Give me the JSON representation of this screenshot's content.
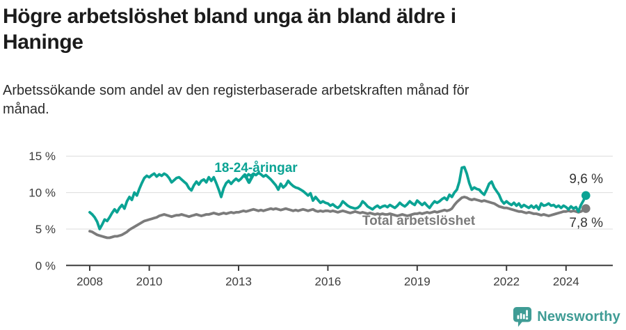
{
  "header": {
    "title": "Högre arbetslöshet bland unga än bland äldre i Haninge",
    "subtitle": "Arbetssökande som andel av den registerbaserade arbetskraften månad för månad."
  },
  "footer": {
    "brand": "Newsworthy"
  },
  "colors": {
    "young_line": "#0ba394",
    "total_line": "#7b7b7b",
    "brand_teal": "#3f9c95",
    "grid": "#dcdcdc",
    "axis": "#3c3c3c",
    "value_label": "#333333",
    "title_text": "#1b1b1b"
  },
  "chart_data": {
    "type": "line",
    "title": "Högre arbetslöshet bland unga än bland äldre i Haninge",
    "subtitle": "Arbetssökande som andel av den registerbaserade arbetskraften månad för månad.",
    "x_unit": "month",
    "x_start": "2008-01",
    "x_end": "2024-09",
    "ylim": [
      0,
      15
    ],
    "grid": true,
    "legend_position": "inline-labels",
    "y_tick_labels": [
      "15 %",
      "10 %",
      "5 %",
      "0 %"
    ],
    "x_tick_labels": [
      "2008",
      "2010",
      "2013",
      "2016",
      "2019",
      "2022",
      "2024"
    ],
    "x_tick_years": [
      2008,
      2010,
      2013,
      2016,
      2019,
      2022,
      2024
    ],
    "series": [
      {
        "name": "18-24-åringar",
        "color": "#0ba394",
        "end_label": "9,6 %",
        "last_value": 9.6,
        "values": [
          7.3,
          7.0,
          6.6,
          6.0,
          5.0,
          5.6,
          6.3,
          6.1,
          6.6,
          7.2,
          7.7,
          7.3,
          7.9,
          8.3,
          7.8,
          8.8,
          9.4,
          9.0,
          10.0,
          9.6,
          10.5,
          11.3,
          12.0,
          12.3,
          12.1,
          12.4,
          12.6,
          12.2,
          12.5,
          12.3,
          12.6,
          12.4,
          12.0,
          11.4,
          11.7,
          12.0,
          12.1,
          11.8,
          11.5,
          11.2,
          10.6,
          10.3,
          11.0,
          11.5,
          11.1,
          11.6,
          11.8,
          11.4,
          12.1,
          11.6,
          12.1,
          11.3,
          10.4,
          9.4,
          10.6,
          11.3,
          11.6,
          11.2,
          11.6,
          11.9,
          11.6,
          11.9,
          12.3,
          12.1,
          12.5,
          12.3,
          12.6,
          12.4,
          12.7,
          12.5,
          12.2,
          12.4,
          12.1,
          11.8,
          11.4,
          11.0,
          10.4,
          11.2,
          10.7,
          11.0,
          11.6,
          11.2,
          10.9,
          10.7,
          10.6,
          10.4,
          10.2,
          9.9,
          9.6,
          9.9,
          8.9,
          9.4,
          9.0,
          8.6,
          8.8,
          8.6,
          8.5,
          8.2,
          8.4,
          8.1,
          7.9,
          8.2,
          8.8,
          8.5,
          8.2,
          8.0,
          7.9,
          7.8,
          7.9,
          8.2,
          8.8,
          8.5,
          8.1,
          7.9,
          7.7,
          8.0,
          8.2,
          7.9,
          8.1,
          8.2,
          8.0,
          8.3,
          8.1,
          7.9,
          8.2,
          8.6,
          8.3,
          8.1,
          8.4,
          8.8,
          8.5,
          8.3,
          8.9,
          8.6,
          8.3,
          8.6,
          8.2,
          7.9,
          8.4,
          8.8,
          8.6,
          8.8,
          9.1,
          9.3,
          9.0,
          9.7,
          9.4,
          10.0,
          10.4,
          11.5,
          13.4,
          13.5,
          12.6,
          11.3,
          10.4,
          10.7,
          10.5,
          10.4,
          10.0,
          9.7,
          10.4,
          11.2,
          11.5,
          10.7,
          10.2,
          9.7,
          8.9,
          8.5,
          8.8,
          8.5,
          8.3,
          8.6,
          8.2,
          8.5,
          8.0,
          8.3,
          8.1,
          7.9,
          8.2,
          7.9,
          8.2,
          7.7,
          8.5,
          8.2,
          8.3,
          8.5,
          8.2,
          8.3,
          8.0,
          8.2,
          7.9,
          8.2,
          8.0,
          7.7,
          8.1,
          7.8,
          8.0,
          7.4,
          8.3,
          8.9,
          9.6
        ]
      },
      {
        "name": "Total arbetslöshet",
        "color": "#7b7b7b",
        "end_label": "7,8 %",
        "last_value": 7.8,
        "values": [
          4.7,
          4.6,
          4.4,
          4.2,
          4.1,
          4.0,
          3.9,
          3.8,
          3.8,
          3.9,
          4.0,
          4.0,
          4.1,
          4.2,
          4.4,
          4.6,
          4.9,
          5.1,
          5.3,
          5.5,
          5.7,
          5.9,
          6.1,
          6.2,
          6.3,
          6.4,
          6.5,
          6.6,
          6.8,
          6.9,
          7.0,
          6.9,
          6.8,
          6.7,
          6.8,
          6.9,
          6.9,
          7.0,
          6.9,
          6.8,
          6.7,
          6.8,
          6.9,
          7.0,
          6.9,
          6.8,
          6.9,
          7.0,
          7.0,
          7.1,
          7.2,
          7.1,
          7.0,
          7.1,
          7.2,
          7.1,
          7.2,
          7.3,
          7.2,
          7.3,
          7.3,
          7.4,
          7.5,
          7.4,
          7.5,
          7.6,
          7.7,
          7.6,
          7.5,
          7.6,
          7.5,
          7.6,
          7.7,
          7.8,
          7.7,
          7.8,
          7.7,
          7.6,
          7.7,
          7.8,
          7.7,
          7.6,
          7.5,
          7.6,
          7.5,
          7.6,
          7.7,
          7.6,
          7.5,
          7.6,
          7.7,
          7.5,
          7.4,
          7.5,
          7.4,
          7.5,
          7.5,
          7.4,
          7.5,
          7.4,
          7.3,
          7.4,
          7.5,
          7.4,
          7.3,
          7.2,
          7.3,
          7.4,
          7.3,
          7.2,
          7.3,
          7.2,
          7.1,
          7.2,
          7.1,
          7.0,
          7.1,
          7.0,
          7.1,
          7.0,
          7.0,
          7.1,
          7.0,
          6.9,
          6.8,
          6.9,
          7.0,
          6.9,
          6.8,
          6.9,
          7.0,
          7.1,
          7.1,
          7.2,
          7.1,
          7.2,
          7.3,
          7.2,
          7.3,
          7.4,
          7.3,
          7.4,
          7.5,
          7.6,
          7.5,
          7.6,
          7.8,
          8.3,
          8.7,
          9.0,
          9.3,
          9.4,
          9.3,
          9.1,
          9.0,
          9.1,
          9.0,
          8.9,
          8.8,
          8.9,
          8.8,
          8.7,
          8.6,
          8.5,
          8.3,
          8.1,
          8.0,
          7.9,
          7.9,
          7.8,
          7.7,
          7.6,
          7.5,
          7.4,
          7.4,
          7.3,
          7.2,
          7.3,
          7.2,
          7.1,
          7.1,
          7.0,
          6.9,
          7.0,
          6.9,
          6.8,
          6.9,
          7.0,
          7.1,
          7.2,
          7.3,
          7.4,
          7.4,
          7.5,
          7.4,
          7.5,
          7.4,
          7.3,
          7.4,
          7.6,
          7.8
        ]
      }
    ]
  }
}
